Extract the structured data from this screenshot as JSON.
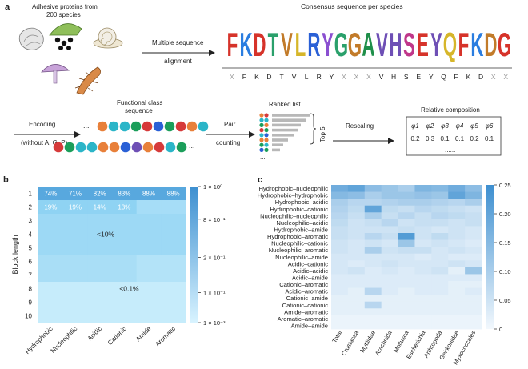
{
  "panel_a": {
    "label": "a",
    "organisms_caption": [
      "Adhesive proteins from",
      "200 species"
    ],
    "arrow1_label": [
      "Multiple sequence",
      "alignment"
    ],
    "logo_title": "Consensus sequence per species",
    "logo_main": [
      "F",
      "K",
      "D",
      "T",
      "V",
      "L",
      "R",
      "Y",
      "G",
      "G",
      "A",
      "V",
      "H",
      "S",
      "E",
      "Y",
      "Q",
      "F",
      "K",
      "D",
      "G"
    ],
    "logo_main_colors": [
      "#d6332a",
      "#2a7de0",
      "#d6332a",
      "#2aa06b",
      "#c27b2a",
      "#d6b62a",
      "#2a60d6",
      "#8a4fd0",
      "#2aa06b",
      "#c27b2a",
      "#1f8f4a",
      "#6e4fb5",
      "#6e4fb5",
      "#c0378a",
      "#d6332a",
      "#6e4fb5",
      "#d6b62a",
      "#d6332a",
      "#2a7de0",
      "#c27b2a",
      "#d6332a"
    ],
    "consensus": [
      "X",
      "F",
      "K",
      "D",
      "T",
      "V",
      "L",
      "R",
      "Y",
      "X",
      "X",
      "X",
      "V",
      "H",
      "S",
      "E",
      "Y",
      "Q",
      "F",
      "K",
      "D",
      "X",
      "X"
    ],
    "encoding_label": [
      "Encoding",
      "(without A, G, P)"
    ],
    "functional_class_label": [
      "Functional class",
      "sequence"
    ],
    "ellipsis": "...",
    "pair_label": [
      "Pair",
      "counting"
    ],
    "ranked_list_label": "Ranked list",
    "top5_label": "Top 5",
    "rescaling_label": "Rescaling",
    "composition_label": "Relative composition",
    "phi_labels": [
      "φ1",
      "φ2",
      "φ3",
      "φ4",
      "φ5",
      "φ6"
    ],
    "phi_values": [
      "0.2",
      "0.3",
      "0.1",
      "0.1",
      "0.2",
      "0.1"
    ],
    "table_dots": "......",
    "dot_colors_row1": [
      "#e8803a",
      "#2bb5c8",
      "#2bb5c8",
      "#1b9e5a",
      "#d63a3a",
      "#2a60d6",
      "#1b9e5a",
      "#d63a3a",
      "#e8803a",
      "#2bb5c8"
    ],
    "dot_colors_row2": [
      "#d63a3a",
      "#1b9e5a",
      "#2bb5c8",
      "#2bb5c8",
      "#e8803a",
      "#e8803a",
      "#2a60d6",
      "#6e4fb5",
      "#e8803a",
      "#d63a3a",
      "#2bb5c8",
      "#1b9e5a"
    ],
    "ranked_dot_colors": [
      "#e8803a",
      "#2bb5c8",
      "#1b9e5a",
      "#d63a3a",
      "#2bb5c8",
      "#e8803a",
      "#1b9e5a",
      "#2a60d6"
    ]
  },
  "chart_data": [
    {
      "panel": "b",
      "type": "heatmap",
      "ylabel": "Block length",
      "x_categories": [
        "Hydrophobic",
        "Nucleophilic",
        "Acidic",
        "Cationic",
        "Amide",
        "Aromatic"
      ],
      "y_categories": [
        "1",
        "2",
        "3",
        "4",
        "5",
        "6",
        "7",
        "8",
        "9",
        "10"
      ],
      "cell_labels": [
        {
          "row": 1,
          "col": 0,
          "text": "74%"
        },
        {
          "row": 1,
          "col": 1,
          "text": "71%"
        },
        {
          "row": 1,
          "col": 2,
          "text": "82%"
        },
        {
          "row": 1,
          "col": 3,
          "text": "83%"
        },
        {
          "row": 1,
          "col": 4,
          "text": "88%"
        },
        {
          "row": 1,
          "col": 5,
          "text": "88%"
        },
        {
          "row": 2,
          "col": 0,
          "text": "19%"
        },
        {
          "row": 2,
          "col": 1,
          "text": "19%"
        },
        {
          "row": 2,
          "col": 2,
          "text": "14%"
        },
        {
          "row": 2,
          "col": 3,
          "text": "13%"
        }
      ],
      "region_annotations": [
        "<10%",
        "<0.1%"
      ],
      "colorbar_ticks": [
        "1 × 10⁰",
        "8 × 10⁻¹",
        "2 × 10⁻¹",
        "1 × 10⁻¹",
        "1 × 10⁻³"
      ],
      "colorbar_scale": "log",
      "colorbar_range": [
        0.001,
        1
      ]
    },
    {
      "panel": "c",
      "type": "heatmap",
      "y_categories": [
        "Hydrophobic–nucleophilic",
        "Hydrophobic–hydrophobic",
        "Hydrophobic–acidic",
        "Hydrophobic–cationic",
        "Nucleophilic–nucleophilic",
        "Nucleophilic–acidic",
        "Hydrophobic–amide",
        "Hydrophobic–aromatic",
        "Nucleophilic–cationic",
        "Nucleophilic–aromatic",
        "Nucleophilic–amide",
        "Acidic–cationic",
        "Acidic–acidic",
        "Acidic–amide",
        "Cationic–aromatic",
        "Acidic–aromatic",
        "Cationic–amide",
        "Cationic–cationic",
        "Amide–aromatic",
        "Aromatic–aromatic",
        "Amide–amide"
      ],
      "x_categories": [
        "Total",
        "Crustacea",
        "Mytilidae",
        "Arachnida",
        "Mollusca",
        "Escherichia",
        "Arthropoda",
        "Gekkonidae",
        "Myxococcales"
      ],
      "values": [
        [
          0.18,
          0.2,
          0.14,
          0.12,
          0.1,
          0.16,
          0.15,
          0.18,
          0.14
        ],
        [
          0.15,
          0.14,
          0.1,
          0.12,
          0.12,
          0.13,
          0.12,
          0.2,
          0.16
        ],
        [
          0.1,
          0.08,
          0.08,
          0.09,
          0.1,
          0.1,
          0.09,
          0.08,
          0.1
        ],
        [
          0.09,
          0.07,
          0.2,
          0.07,
          0.06,
          0.08,
          0.07,
          0.06,
          0.05
        ],
        [
          0.08,
          0.06,
          0.1,
          0.06,
          0.08,
          0.06,
          0.08,
          0.07,
          0.06
        ],
        [
          0.07,
          0.05,
          0.06,
          0.08,
          0.05,
          0.06,
          0.06,
          0.05,
          0.06
        ],
        [
          0.06,
          0.05,
          0.05,
          0.05,
          0.06,
          0.05,
          0.04,
          0.05,
          0.04
        ],
        [
          0.06,
          0.05,
          0.08,
          0.06,
          0.22,
          0.05,
          0.07,
          0.05,
          0.04
        ],
        [
          0.05,
          0.04,
          0.05,
          0.04,
          0.12,
          0.04,
          0.05,
          0.04,
          0.03
        ],
        [
          0.05,
          0.04,
          0.1,
          0.05,
          0.06,
          0.06,
          0.04,
          0.05,
          0.04
        ],
        [
          0.04,
          0.04,
          0.04,
          0.04,
          0.04,
          0.03,
          0.04,
          0.03,
          0.03
        ],
        [
          0.04,
          0.03,
          0.04,
          0.05,
          0.04,
          0.04,
          0.04,
          0.05,
          0.04
        ],
        [
          0.04,
          0.05,
          0.03,
          0.04,
          0.03,
          0.04,
          0.05,
          0.02,
          0.12
        ],
        [
          0.03,
          0.03,
          0.03,
          0.03,
          0.03,
          0.03,
          0.03,
          0.03,
          0.03
        ],
        [
          0.03,
          0.03,
          0.03,
          0.03,
          0.03,
          0.03,
          0.03,
          0.02,
          0.02
        ],
        [
          0.03,
          0.02,
          0.08,
          0.03,
          0.02,
          0.03,
          0.03,
          0.02,
          0.03
        ],
        [
          0.02,
          0.02,
          0.02,
          0.02,
          0.02,
          0.02,
          0.02,
          0.02,
          0.02
        ],
        [
          0.02,
          0.02,
          0.08,
          0.02,
          0.02,
          0.02,
          0.02,
          0.02,
          0.02
        ],
        [
          0.02,
          0.02,
          0.02,
          0.02,
          0.02,
          0.02,
          0.02,
          0.02,
          0.02
        ],
        [
          0.01,
          0.01,
          0.01,
          0.01,
          0.01,
          0.01,
          0.01,
          0.01,
          0.01
        ],
        [
          0.01,
          0.01,
          0.01,
          0.01,
          0.01,
          0.01,
          0.01,
          0.01,
          0.01
        ]
      ],
      "colorbar_ticks": [
        "0.25",
        "0.20",
        "0.15",
        "0.10",
        "0.05",
        "0"
      ],
      "colorbar_range": [
        0,
        0.25
      ]
    }
  ],
  "panel_b": {
    "label": "b"
  },
  "panel_c": {
    "label": "c"
  }
}
